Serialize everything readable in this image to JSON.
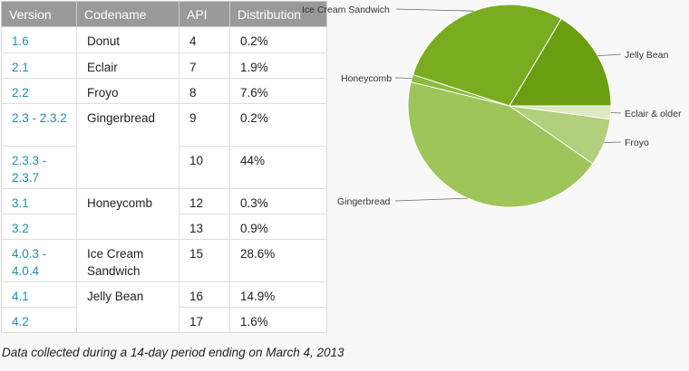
{
  "table": {
    "headers": [
      "Version",
      "Codename",
      "API",
      "Distribution"
    ],
    "rows": [
      {
        "version": "1.6",
        "codename": "Donut",
        "api": "4",
        "distribution": "0.2%"
      },
      {
        "version": "2.1",
        "codename": "Eclair",
        "api": "7",
        "distribution": "1.9%"
      },
      {
        "version": "2.2",
        "codename": "Froyo",
        "api": "8",
        "distribution": "7.6%"
      },
      {
        "version": "2.3 - 2.3.2",
        "codename": "Gingerbread",
        "api": "9",
        "distribution": "0.2%"
      },
      {
        "version": "2.3.3 - 2.3.7",
        "codename": "",
        "api": "10",
        "distribution": "44%"
      },
      {
        "version": "3.1",
        "codename": "Honeycomb",
        "api": "12",
        "distribution": "0.3%"
      },
      {
        "version": "3.2",
        "codename": "",
        "api": "13",
        "distribution": "0.9%"
      },
      {
        "version": "4.0.3 - 4.0.4",
        "codename": "Ice Cream Sandwich",
        "api": "15",
        "distribution": "28.6%"
      },
      {
        "version": "4.1",
        "codename": "Jelly Bean",
        "api": "16",
        "distribution": "14.9%"
      },
      {
        "version": "4.2",
        "codename": "",
        "api": "17",
        "distribution": "1.6%"
      }
    ]
  },
  "colors": {
    "header_bg": "#999999",
    "link": "#258aaf",
    "slices": {
      "Eclair & older": "#dde9c1",
      "Froyo": "#b1cf7c",
      "Gingerbread": "#9dc55a",
      "Honeycomb": "#8bbb3c",
      "Ice Cream Sandwich": "#7aac22",
      "Jelly Bean": "#6a9e10"
    }
  },
  "chart_data": {
    "type": "pie",
    "title": "",
    "slices": [
      {
        "label": "Eclair & older",
        "value": 2.1
      },
      {
        "label": "Froyo",
        "value": 7.6
      },
      {
        "label": "Gingerbread",
        "value": 44.2
      },
      {
        "label": "Honeycomb",
        "value": 1.2
      },
      {
        "label": "Ice Cream Sandwich",
        "value": 28.6
      },
      {
        "label": "Jelly Bean",
        "value": 16.5
      }
    ]
  },
  "caption": "Data collected during a 14-day period ending on March 4, 2013"
}
